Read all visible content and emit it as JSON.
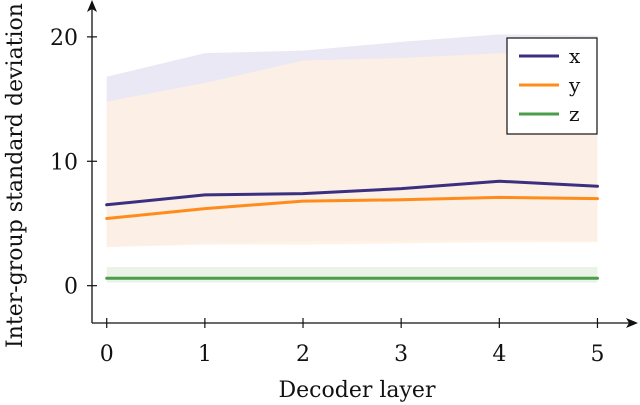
{
  "chart_data": {
    "type": "line",
    "title": "",
    "xlabel": "Decoder layer",
    "ylabel": "Inter-group standard deviation",
    "x": [
      0,
      1,
      2,
      3,
      4,
      5
    ],
    "xticks": [
      "0",
      "1",
      "2",
      "3",
      "4",
      "5"
    ],
    "yticks": [
      "0",
      "10",
      "20"
    ],
    "ytick_values": [
      0,
      10,
      20
    ],
    "xlim": [
      -0.15,
      5.25
    ],
    "ylim": [
      -3.0,
      22.0
    ],
    "grid": false,
    "legend_position": "top-right",
    "series": [
      {
        "name": "x",
        "color": "#3b2f80",
        "band_color": "#e6e4f2",
        "values": [
          6.5,
          7.3,
          7.4,
          7.8,
          8.4,
          8.0
        ],
        "band_low": [
          3.1,
          3.4,
          3.6,
          3.6,
          3.7,
          3.6
        ],
        "band_high": [
          16.8,
          18.7,
          18.9,
          19.6,
          20.2,
          20.1
        ]
      },
      {
        "name": "y",
        "color": "#ff8c1a",
        "band_color": "#fff0e2",
        "values": [
          5.4,
          6.2,
          6.8,
          6.9,
          7.1,
          7.0
        ],
        "band_low": [
          3.1,
          3.3,
          3.3,
          3.4,
          3.5,
          3.5
        ],
        "band_high": [
          14.8,
          16.3,
          18.1,
          18.3,
          18.7,
          18.6
        ]
      },
      {
        "name": "z",
        "color": "#4a9e4a",
        "band_color": "#e8f1e5",
        "values": [
          0.6,
          0.6,
          0.6,
          0.6,
          0.6,
          0.6
        ],
        "band_low": [
          0.25,
          0.25,
          0.25,
          0.25,
          0.25,
          0.25
        ],
        "band_high": [
          1.5,
          1.5,
          1.5,
          1.5,
          1.5,
          1.5
        ]
      }
    ]
  }
}
